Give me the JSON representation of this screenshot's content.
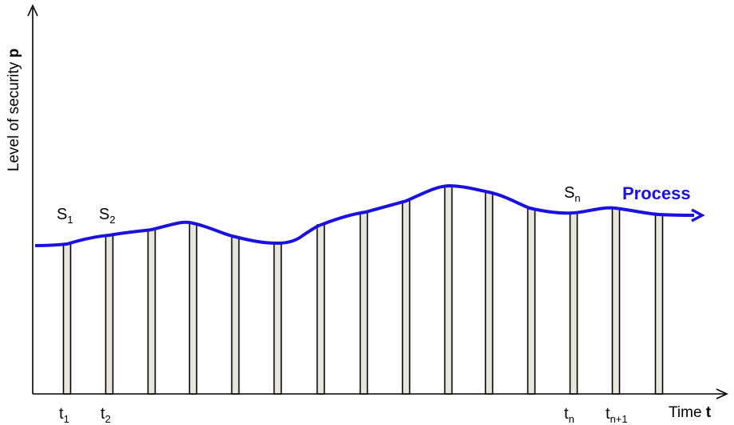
{
  "axes": {
    "y_label": "Level of security ",
    "y_label_bold": "p",
    "x_label": "Time ",
    "x_label_bold": "t"
  },
  "process": {
    "label": "Process",
    "color": "#1a10e0"
  },
  "state_labels": [
    {
      "base": "S",
      "sub": "1"
    },
    {
      "base": "S",
      "sub": "2"
    },
    {
      "base": "S",
      "sub": "n"
    }
  ],
  "time_labels": [
    {
      "base": "t",
      "sub": "1"
    },
    {
      "base": "t",
      "sub": "2"
    },
    {
      "base": "t",
      "sub": "n"
    },
    {
      "base": "t",
      "sub": "n+1"
    }
  ],
  "colors": {
    "axis": "#000000",
    "bar_fill": "#e8e6dc",
    "bar_stroke": "#000000"
  }
}
